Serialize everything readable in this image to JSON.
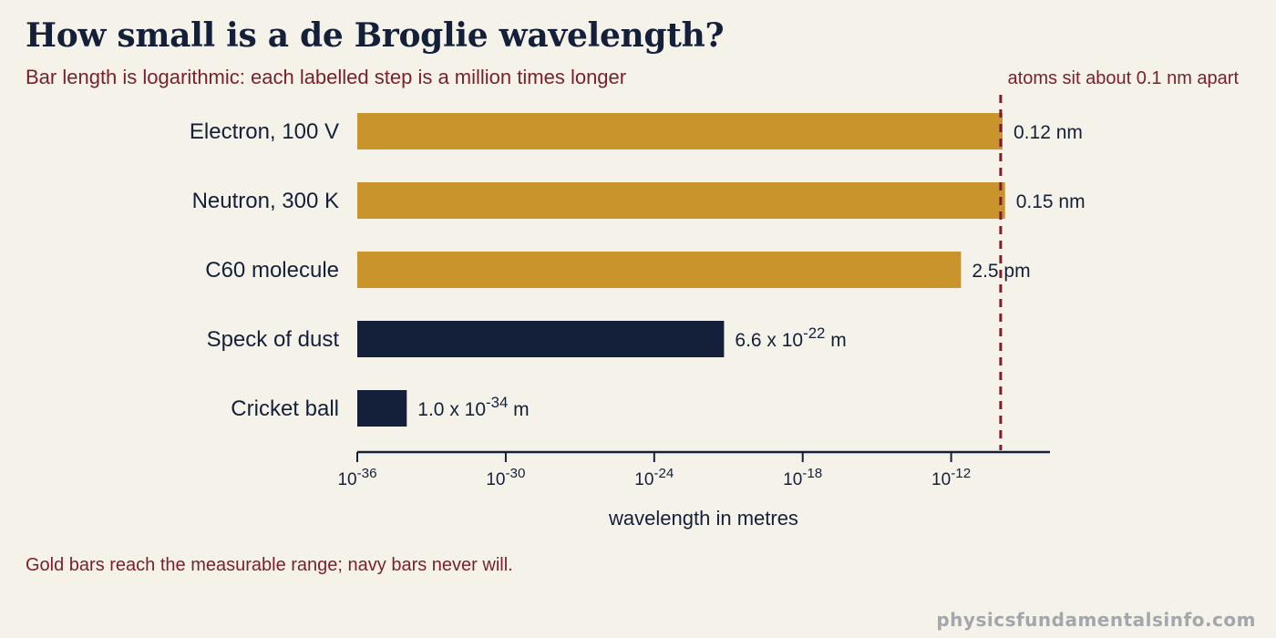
{
  "title": "How small is a de Broglie wavelength?",
  "subtitle": "Bar length is logarithmic: each labelled step is a million times longer",
  "footnote": "Gold bars reach the measurable range; navy bars never will.",
  "watermark": "physicsfundamentalsinfo.com",
  "colors": {
    "measurable": "#c9942c",
    "unmeasurable": "#14203a",
    "reference": "#7a1f2b",
    "background": "#f5f2ea"
  },
  "chart_data": {
    "type": "bar",
    "orientation": "horizontal",
    "scale": "log",
    "xlabel": "wavelength in metres",
    "xlim": [
      "1e-36",
      "1e-8"
    ],
    "categories": [
      "Electron, 100 V",
      "Neutron, 300 K",
      "C60 molecule",
      "Speck of dust",
      "Cricket ball"
    ],
    "values": [
      1.2e-10,
      1.5e-10,
      2.5e-12,
      6.6e-22,
      1e-34
    ],
    "value_labels": [
      {
        "base": "0.12 nm",
        "sup": "",
        "tail": ""
      },
      {
        "base": "0.15 nm",
        "sup": "",
        "tail": ""
      },
      {
        "base": "2.5 pm",
        "sup": "",
        "tail": ""
      },
      {
        "base": "6.6 x 10",
        "sup": "-22",
        "tail": " m"
      },
      {
        "base": "1.0 x 10",
        "sup": "-34",
        "tail": " m"
      }
    ],
    "groups": [
      "measurable",
      "measurable",
      "measurable",
      "unmeasurable",
      "unmeasurable"
    ],
    "ticks": [
      {
        "value": 1e-36,
        "base": "10",
        "sup": "-36"
      },
      {
        "value": 1e-30,
        "base": "10",
        "sup": "-30"
      },
      {
        "value": 1e-24,
        "base": "10",
        "sup": "-24"
      },
      {
        "value": 1e-18,
        "base": "10",
        "sup": "-18"
      },
      {
        "value": 1e-12,
        "base": "10",
        "sup": "-12"
      }
    ],
    "reference_line": {
      "value": 1e-10,
      "label": "atoms sit about 0.1 nm apart"
    }
  }
}
